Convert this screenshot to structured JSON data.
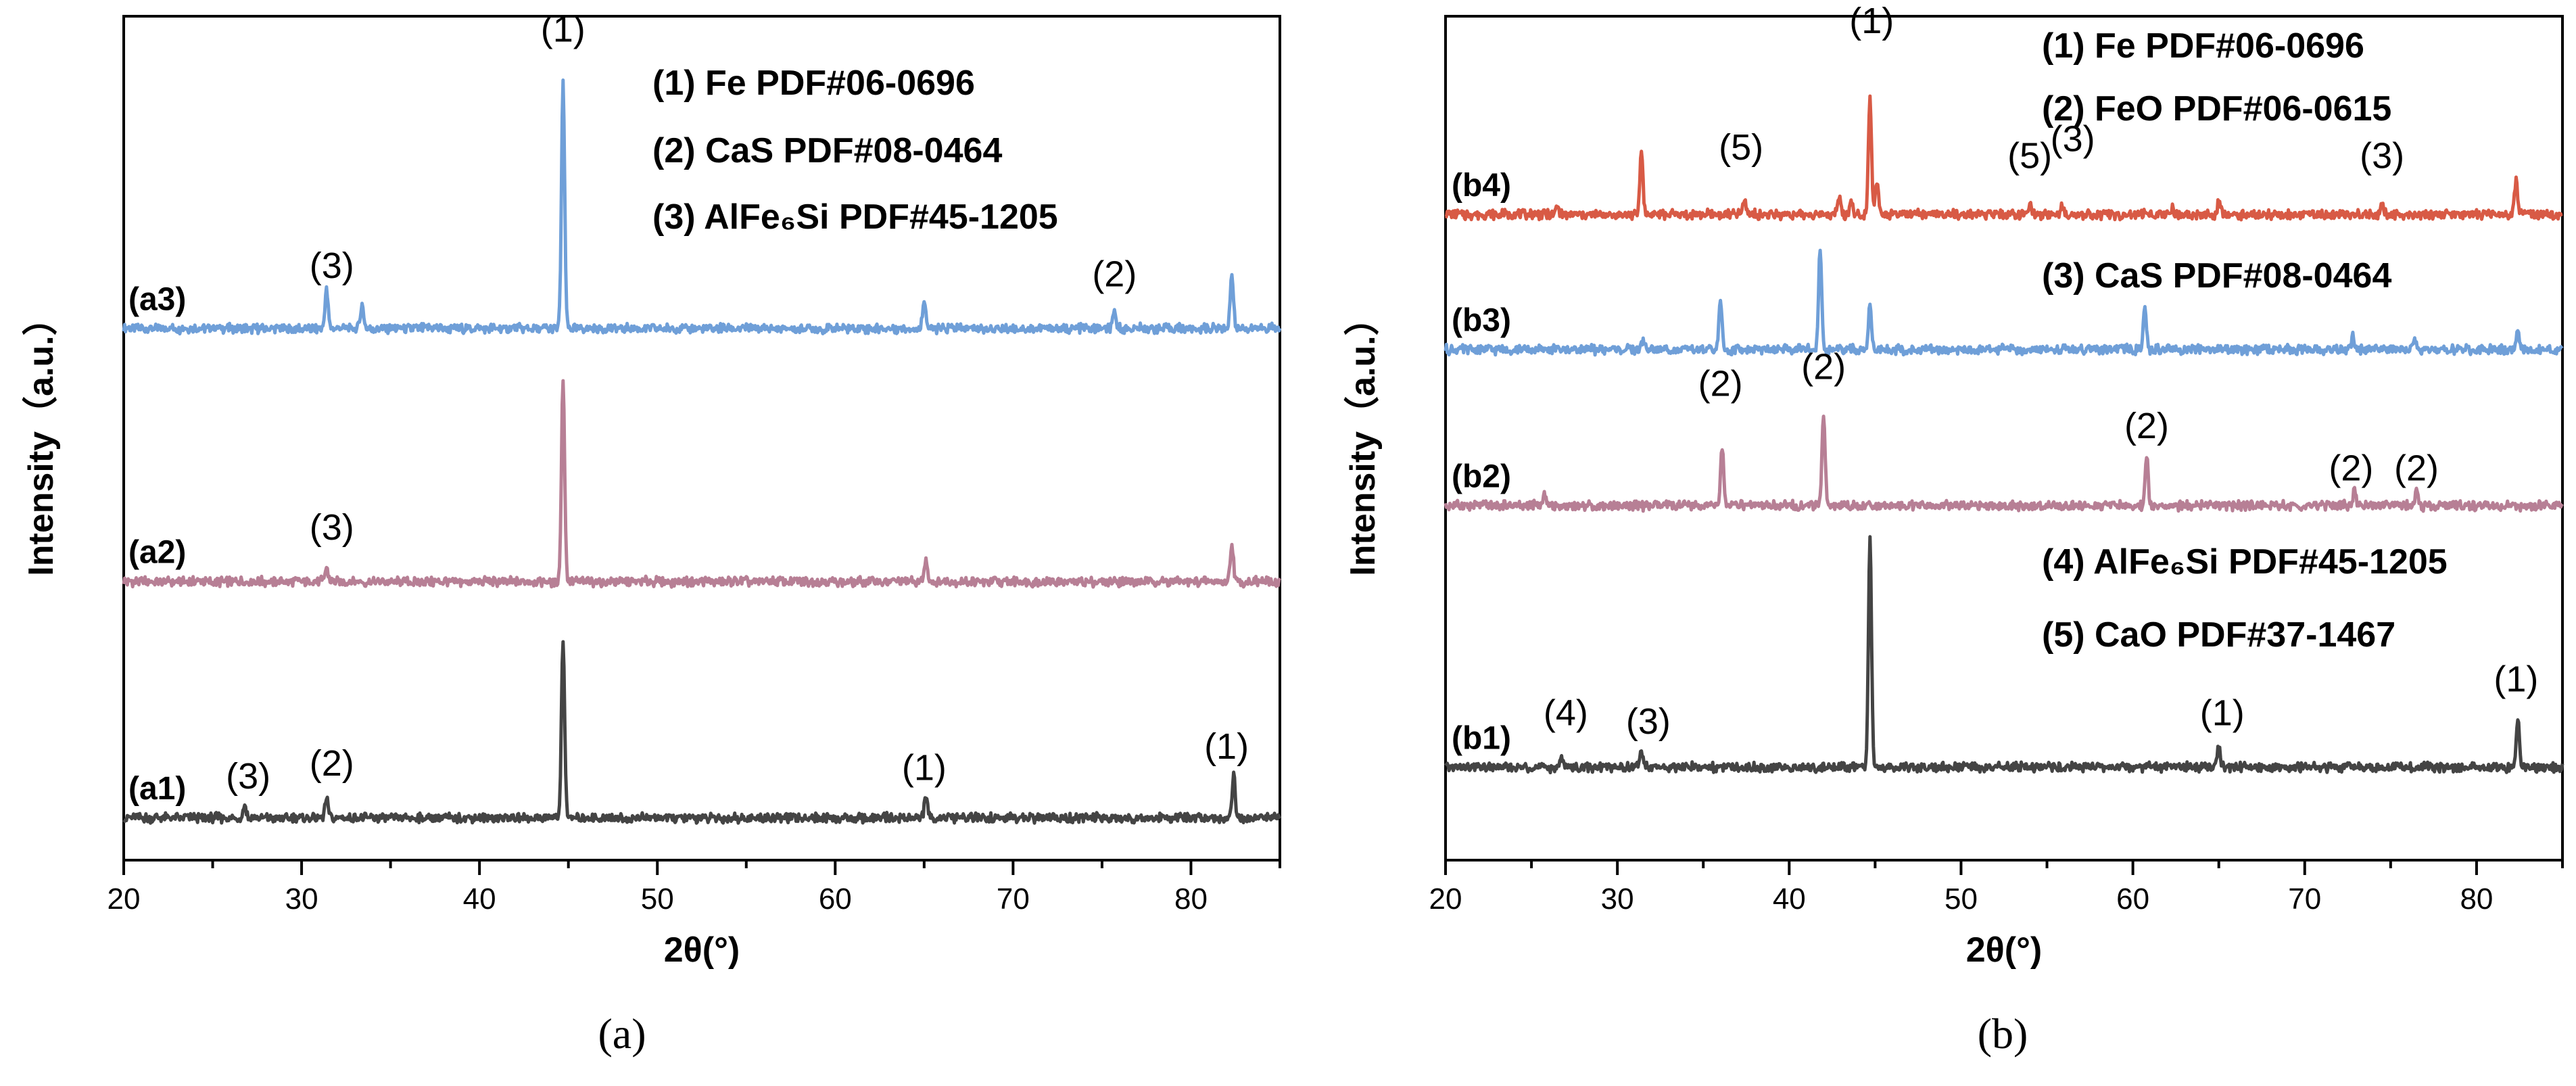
{
  "chart_data": [
    {
      "type": "line",
      "panel_caption": "(a)",
      "xlabel": "2θ(°)",
      "ylabel": "Intensity（a.u.）",
      "xlim": [
        20,
        85
      ],
      "xticks": [
        20,
        30,
        40,
        50,
        60,
        70,
        80
      ],
      "ylim": [
        0,
        100
      ],
      "legend": [
        "(1) Fe PDF#06-0696",
        "(2) CaS PDF#08-0464",
        "(3) AlFe₆Si PDF#45-1205"
      ],
      "series": [
        {
          "name": "(a3)",
          "color": "#6f9fd8",
          "baseline": 63,
          "peaks": [
            [
              31.4,
              4.5
            ],
            [
              33.4,
              2.8
            ],
            [
              44.7,
              29
            ],
            [
              65.0,
              3.5
            ],
            [
              75.7,
              1.8
            ],
            [
              82.3,
              6.5
            ]
          ]
        },
        {
          "name": "(a2)",
          "color": "#b77f95",
          "baseline": 33,
          "peaks": [
            [
              31.4,
              1.5
            ],
            [
              44.7,
              24
            ],
            [
              65.1,
              2.5
            ],
            [
              82.3,
              4.5
            ]
          ]
        },
        {
          "name": "(a1)",
          "color": "#444444",
          "baseline": 5,
          "peaks": [
            [
              26.8,
              1.5
            ],
            [
              31.4,
              2.2
            ],
            [
              44.7,
              21
            ],
            [
              65.1,
              2.5
            ],
            [
              82.4,
              5.0
            ]
          ]
        }
      ],
      "annotations": [
        {
          "text": "(1)",
          "x": 44.7,
          "y": 97
        },
        {
          "text": "(3)",
          "x": 31.7,
          "y": 69
        },
        {
          "text": "(2)",
          "x": 75.7,
          "y": 68
        },
        {
          "text": "(3)",
          "x": 31.7,
          "y": 38
        },
        {
          "text": "(3)",
          "x": 27.0,
          "y": 8.5
        },
        {
          "text": "(2)",
          "x": 31.7,
          "y": 10
        },
        {
          "text": "(1)",
          "x": 65.0,
          "y": 9.5
        },
        {
          "text": "(1)",
          "x": 82.0,
          "y": 12
        }
      ]
    },
    {
      "type": "line",
      "panel_caption": "(b)",
      "xlabel": "2θ(°)",
      "ylabel": "Intensity（a.u.）",
      "xlim": [
        20,
        85
      ],
      "xticks": [
        20,
        30,
        40,
        50,
        60,
        70,
        80
      ],
      "ylim": [
        0,
        100
      ],
      "legend": [
        "(1) Fe PDF#06-0696",
        "(2) FeO PDF#06-0615",
        "(3) CaS PDF#08-0464",
        "(4) AlFe₆Si PDF#45-1205",
        "(5) CaO PDF#37-1467"
      ],
      "series": [
        {
          "name": "(b4)",
          "color": "#d85a45",
          "baseline": 76.5,
          "peaks": [
            [
              26.5,
              1.0
            ],
            [
              31.4,
              7.5
            ],
            [
              37.4,
              1.5
            ],
            [
              42.9,
              2.2
            ],
            [
              43.6,
              1.6
            ],
            [
              44.7,
              14
            ],
            [
              45.1,
              4.0
            ],
            [
              54.0,
              1.2
            ],
            [
              55.9,
              1.3
            ],
            [
              62.3,
              0.8
            ],
            [
              65.0,
              1.4
            ],
            [
              74.5,
              1.7
            ],
            [
              82.3,
              4.0
            ]
          ]
        },
        {
          "name": "(b3)",
          "color": "#6f9fd8",
          "baseline": 60.5,
          "peaks": [
            [
              31.5,
              1.0
            ],
            [
              36.0,
              5.5
            ],
            [
              41.8,
              12
            ],
            [
              44.7,
              5.5
            ],
            [
              60.7,
              5.0
            ],
            [
              72.8,
              1.5
            ],
            [
              76.4,
              1.1
            ],
            [
              82.4,
              2.5
            ]
          ]
        },
        {
          "name": "(b2)",
          "color": "#b77f95",
          "baseline": 42,
          "peaks": [
            [
              25.8,
              1.4
            ],
            [
              36.1,
              6.8
            ],
            [
              42.0,
              11
            ],
            [
              60.8,
              5.8
            ],
            [
              72.9,
              2.0
            ],
            [
              76.5,
              1.6
            ]
          ]
        },
        {
          "name": "(b1)",
          "color": "#444444",
          "baseline": 11,
          "peaks": [
            [
              26.8,
              1.2
            ],
            [
              31.4,
              2.0
            ],
            [
              44.7,
              27
            ],
            [
              65.0,
              2.5
            ],
            [
              82.4,
              6.0
            ]
          ]
        }
      ],
      "annotations": [
        {
          "text": "(1)",
          "x": 44.8,
          "y": 98
        },
        {
          "text": "(5)",
          "x": 37.2,
          "y": 83
        },
        {
          "text": "(5)",
          "x": 54.0,
          "y": 82
        },
        {
          "text": "(3)",
          "x": 56.5,
          "y": 84
        },
        {
          "text": "(3)",
          "x": 74.5,
          "y": 82
        },
        {
          "text": "(2)",
          "x": 36.0,
          "y": 55
        },
        {
          "text": "(2)",
          "x": 42.0,
          "y": 57
        },
        {
          "text": "(2)",
          "x": 60.8,
          "y": 50
        },
        {
          "text": "(2)",
          "x": 72.7,
          "y": 45
        },
        {
          "text": "(2)",
          "x": 76.5,
          "y": 45
        },
        {
          "text": "(4)",
          "x": 27.0,
          "y": 16
        },
        {
          "text": "(3)",
          "x": 31.8,
          "y": 15
        },
        {
          "text": "(1)",
          "x": 65.2,
          "y": 16
        },
        {
          "text": "(1)",
          "x": 82.3,
          "y": 20
        }
      ]
    }
  ]
}
